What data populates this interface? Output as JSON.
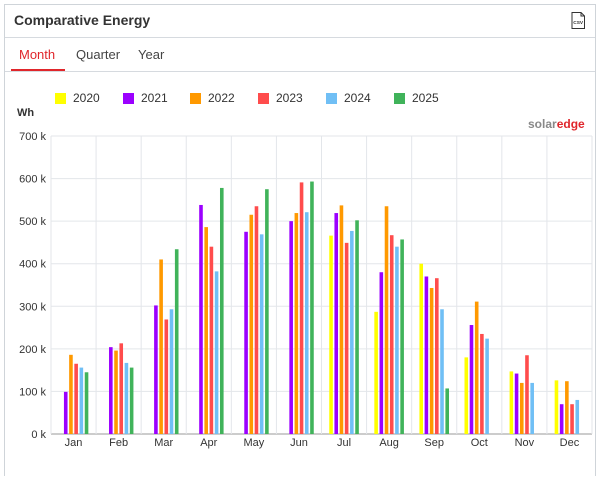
{
  "panel": {
    "title": "Comparative Energy",
    "csv_icon": "csv-file-icon"
  },
  "tabs": [
    {
      "label": "Month",
      "active": true
    },
    {
      "label": "Quarter",
      "active": false
    },
    {
      "label": "Year",
      "active": false
    }
  ],
  "logo": {
    "part1": "solar",
    "part2": "edge"
  },
  "colors": {
    "accent": "#e0262b"
  },
  "chart_data": {
    "type": "bar",
    "ylabel": "Wh",
    "ylim": [
      0,
      700000
    ],
    "yticks": [
      "0 k",
      "100 k",
      "200 k",
      "300 k",
      "400 k",
      "500 k",
      "600 k",
      "700 k"
    ],
    "categories": [
      "Jan",
      "Feb",
      "Mar",
      "Apr",
      "May",
      "Jun",
      "Jul",
      "Aug",
      "Sep",
      "Oct",
      "Nov",
      "Dec"
    ],
    "grid": true,
    "legend": "top",
    "series": [
      {
        "name": "2020",
        "color": "#ffff00",
        "values": [
          null,
          null,
          null,
          null,
          null,
          null,
          466000,
          287000,
          400000,
          180000,
          147000,
          126000
        ]
      },
      {
        "name": "2021",
        "color": "#9b00ff",
        "values": [
          99000,
          204000,
          302000,
          538000,
          475000,
          500000,
          519000,
          380000,
          370000,
          256000,
          142000,
          70000
        ]
      },
      {
        "name": "2022",
        "color": "#ff9900",
        "values": [
          186000,
          196000,
          410000,
          486000,
          515000,
          519000,
          537000,
          535000,
          343000,
          311000,
          120000,
          124000
        ]
      },
      {
        "name": "2023",
        "color": "#ff4c4c",
        "values": [
          165000,
          213000,
          269000,
          440000,
          535000,
          591000,
          449000,
          467000,
          366000,
          235000,
          185000,
          70000
        ]
      },
      {
        "name": "2024",
        "color": "#70bff5",
        "values": [
          156000,
          167000,
          293000,
          382000,
          469000,
          521000,
          477000,
          440000,
          293000,
          224000,
          120000,
          80000
        ]
      },
      {
        "name": "2025",
        "color": "#40b35a",
        "values": [
          145000,
          156000,
          434000,
          578000,
          575000,
          593000,
          502000,
          457000,
          107000,
          null,
          null,
          null
        ]
      }
    ]
  }
}
